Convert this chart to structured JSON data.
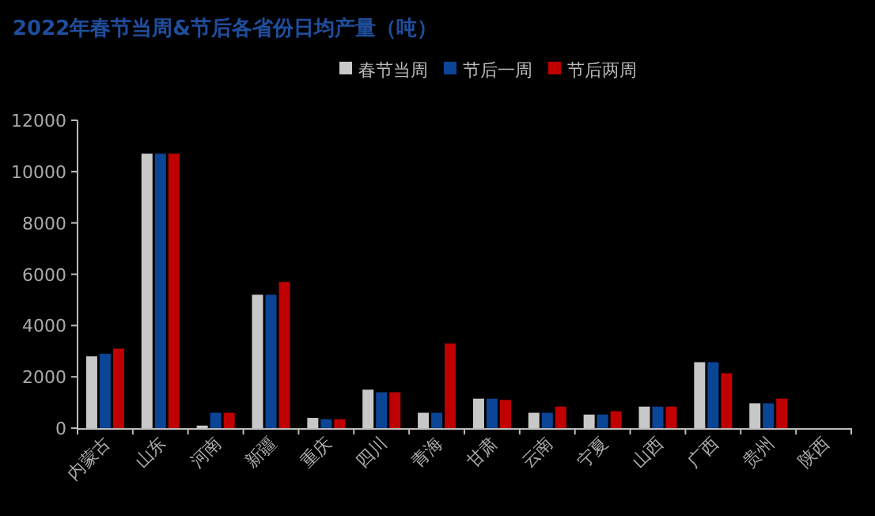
{
  "chart_data": {
    "type": "bar",
    "title": "2022年春节当周&节后各省份日均产量（吨）",
    "categories": [
      "内蒙古",
      "山东",
      "河南",
      "新疆",
      "重庆",
      "四川",
      "青海",
      "甘肃",
      "云南",
      "宁夏",
      "山西",
      "广西",
      "贵州",
      "陕西"
    ],
    "series": [
      {
        "name": "春节当周",
        "color": "#c8c8c8",
        "values": [
          2800,
          10700,
          100,
          5200,
          400,
          1500,
          600,
          1150,
          600,
          530,
          840,
          2570,
          970,
          null
        ]
      },
      {
        "name": "节后一周",
        "color": "#0b4596",
        "values": [
          2900,
          10700,
          600,
          5200,
          350,
          1400,
          600,
          1150,
          600,
          530,
          840,
          2570,
          970,
          null
        ]
      },
      {
        "name": "节后两周",
        "color": "#c00000",
        "values": [
          3100,
          10700,
          600,
          5700,
          350,
          1400,
          3300,
          1100,
          840,
          660,
          840,
          2140,
          1150,
          null
        ]
      }
    ],
    "ylim": [
      0,
      12000
    ],
    "yticks": [
      0,
      2000,
      4000,
      6000,
      8000,
      10000,
      12000
    ],
    "grid": false,
    "legend": "top"
  }
}
